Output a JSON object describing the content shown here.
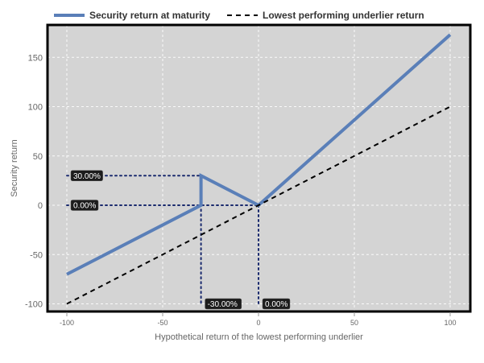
{
  "chart_data": {
    "type": "line",
    "xlabel": "Hypothetical return of the lowest performing underlier",
    "ylabel": "Security return",
    "xlim": [
      -105,
      110
    ],
    "ylim": [
      -110,
      185
    ],
    "xticks": [
      -100,
      -50,
      0,
      50,
      100
    ],
    "yticks": [
      -100,
      -50,
      0,
      50,
      100,
      150
    ],
    "grid": true,
    "legend_position": "top",
    "series": [
      {
        "name": "Security return at maturity",
        "color": "#5a7fb8",
        "style": "solid",
        "points": [
          [
            -100,
            -70
          ],
          [
            -30,
            0
          ],
          [
            -30,
            30
          ],
          [
            0,
            0
          ],
          [
            100,
            173
          ]
        ]
      },
      {
        "name": "Lowest performing underlier return",
        "color": "#000000",
        "style": "dashed",
        "points": [
          [
            -100,
            -100
          ],
          [
            100,
            100
          ]
        ]
      }
    ],
    "reference_lines": [
      {
        "points": [
          [
            -100,
            30
          ],
          [
            -30,
            30
          ]
        ]
      },
      {
        "points": [
          [
            -100,
            0
          ],
          [
            0,
            0
          ]
        ]
      },
      {
        "points": [
          [
            -30,
            30
          ],
          [
            -30,
            -100
          ]
        ]
      },
      {
        "points": [
          [
            0,
            0
          ],
          [
            0,
            -100
          ]
        ]
      }
    ],
    "annotations": [
      {
        "text": "30.00%",
        "x": -100,
        "y": 30,
        "anchor": "y-axis"
      },
      {
        "text": "0.00%",
        "x": -100,
        "y": 0,
        "anchor": "y-axis"
      },
      {
        "text": "-30.00%",
        "x": -30,
        "y": -100,
        "anchor": "x-axis"
      },
      {
        "text": "0.00%",
        "x": 0,
        "y": -100,
        "anchor": "x-axis"
      }
    ]
  }
}
